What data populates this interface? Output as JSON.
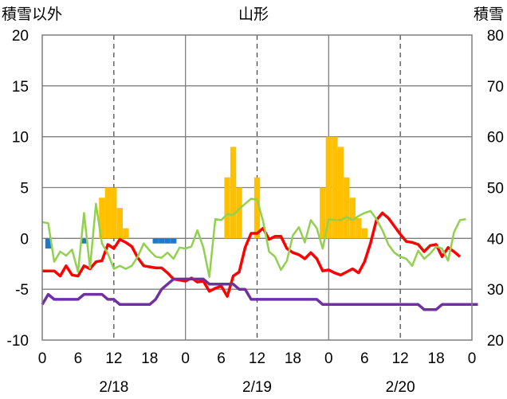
{
  "chart_data": {
    "type": "bar",
    "title": "山形",
    "left_axis_label": "積雪以外",
    "right_axis_label": "積雪",
    "left_ylim": [
      -10,
      20
    ],
    "left_ticks": [
      -10,
      -5,
      0,
      5,
      10,
      15,
      20
    ],
    "right_ylim": [
      20,
      80
    ],
    "right_ticks": [
      20,
      30,
      40,
      50,
      60,
      70,
      80
    ],
    "x_range_hours": [
      0,
      72
    ],
    "x_tick_labels": [
      "0",
      "6",
      "12",
      "18",
      "0",
      "6",
      "12",
      "18",
      "0",
      "6",
      "12",
      "18",
      "0"
    ],
    "date_labels": [
      "2/18",
      "2/19",
      "2/20"
    ],
    "grid": true,
    "series": [
      {
        "kind": "bar",
        "color": "#FFC000",
        "x": [
          10,
          11,
          12,
          13,
          14,
          31,
          32,
          33,
          36,
          47,
          48,
          49,
          50,
          51,
          52,
          53,
          54
        ],
        "values": [
          4,
          5,
          5,
          3,
          1,
          6,
          9,
          5,
          6,
          5,
          10,
          10,
          9,
          6,
          4,
          2,
          1
        ]
      },
      {
        "kind": "bar",
        "color": "#1F78C8",
        "x": [
          1,
          7,
          19,
          20,
          21,
          22
        ],
        "values": [
          -1,
          -0.5,
          -0.5,
          -0.5,
          -0.5,
          -0.5
        ]
      },
      {
        "kind": "line",
        "color": "#FF0000",
        "values": [
          -3.2,
          -3.2,
          -3.2,
          -3.7,
          -2.7,
          -3.6,
          -3.7,
          -2.7,
          -3.0,
          -2.3,
          -2.2,
          -0.6,
          -1.0,
          -0.1,
          -0.4,
          -0.8,
          -1.9,
          -2.7,
          -2.8,
          -2.9,
          -2.9,
          -3.4,
          -4.0,
          -4.1,
          -4.2,
          -3.9,
          -4.3,
          -4.2,
          -5.2,
          -4.9,
          -4.7,
          -5.7,
          -3.7,
          -3.3,
          -0.9,
          0.5,
          0.5,
          1.0,
          -0.1,
          0.2,
          0.2,
          -1.0,
          -1.4,
          -1.6,
          -2.0,
          -1.4,
          -2.0,
          -3.2,
          -3.1,
          -3.4,
          -3.6,
          -3.3,
          -3.0,
          -3.4,
          -2.3,
          -0.5,
          1.8,
          2.5,
          2.0,
          1.2,
          0.4,
          -0.3,
          -0.4,
          -0.6,
          -1.3,
          -0.7,
          -0.6,
          -1.8,
          -0.9,
          -1.3,
          -1.8
        ]
      },
      {
        "kind": "line",
        "color": "#92D050",
        "values": [
          1.6,
          1.5,
          -2.3,
          -1.3,
          -1.7,
          -1.1,
          -3.3,
          2.5,
          -2.9,
          3.4,
          -0.5,
          -1.5,
          -3.0,
          -2.7,
          -3.0,
          -2.7,
          -1.8,
          -0.5,
          -1.2,
          -1.8,
          -1.9,
          -1.4,
          -2.0,
          -0.9,
          -1.0,
          -0.8,
          0.8,
          -0.9,
          -3.8,
          1.9,
          1.8,
          2.4,
          2.3,
          2.9,
          3.4,
          3.9,
          3.8,
          1.7,
          -1.3,
          -1.8,
          -3.1,
          -2.2,
          0.3,
          1.1,
          -0.4,
          1.8,
          1.0,
          -1.0,
          1.9,
          1.8,
          1.8,
          2.1,
          1.8,
          2.2,
          2.5,
          2.7,
          1.9,
          0.8,
          -0.6,
          -1.4,
          -1.8,
          -2.0,
          -2.7,
          -1.2,
          -2.0,
          -1.5,
          -0.8,
          -1.0,
          -2.2,
          0.6,
          1.8,
          1.9
        ]
      },
      {
        "kind": "line",
        "color": "#7030A0",
        "values": [
          -6.5,
          -5.5,
          -6.0,
          -6.0,
          -6.0,
          -6.0,
          -6.0,
          -5.5,
          -5.5,
          -5.5,
          -5.5,
          -6.0,
          -6.0,
          -6.5,
          -6.5,
          -6.5,
          -6.5,
          -6.5,
          -6.5,
          -6.0,
          -5.0,
          -4.5,
          -4.0,
          -4.0,
          -4.0,
          -4.0,
          -4.0,
          -4.0,
          -4.5,
          -4.5,
          -4.5,
          -4.5,
          -4.5,
          -5.0,
          -5.0,
          -6.0,
          -6.0,
          -6.0,
          -6.0,
          -6.0,
          -6.0,
          -6.0,
          -6.0,
          -6.0,
          -6.0,
          -6.0,
          -6.0,
          -6.5,
          -6.5,
          -6.5,
          -6.5,
          -6.5,
          -6.5,
          -6.5,
          -6.5,
          -6.5,
          -6.5,
          -6.5,
          -6.5,
          -6.5,
          -6.5,
          -6.5,
          -6.5,
          -6.5,
          -7.0,
          -7.0,
          -7.0,
          -6.5,
          -6.5,
          -6.5,
          -6.5,
          -6.5,
          -6.5,
          -6.5
        ]
      }
    ]
  }
}
